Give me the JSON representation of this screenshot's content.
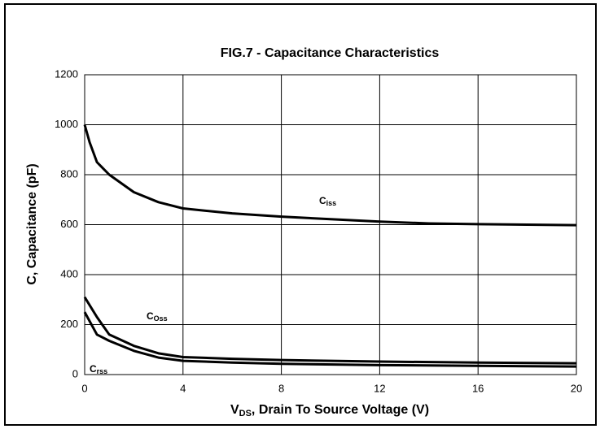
{
  "chart_data": {
    "type": "line",
    "title": "FIG.7 - Capacitance Characteristics",
    "xlabel": [
      "V",
      "DS",
      ", Drain To Source Voltage (V)"
    ],
    "ylabel": "C, Capacitance (pF)",
    "xlim": [
      0,
      20
    ],
    "xticks": [
      0,
      4,
      8,
      12,
      16,
      20
    ],
    "ylim": [
      0,
      1200
    ],
    "yticks": [
      0,
      200,
      400,
      600,
      800,
      1000,
      1200
    ],
    "grid": true,
    "series": [
      {
        "label": [
          "C",
          "iss"
        ],
        "color": "#000000",
        "x": [
          0,
          0.2,
          0.5,
          1,
          2,
          3,
          4,
          6,
          8,
          10,
          12,
          14,
          16,
          18,
          20
        ],
        "values": [
          1000,
          930,
          850,
          800,
          730,
          690,
          665,
          645,
          632,
          622,
          612,
          605,
          602,
          600,
          598
        ]
      },
      {
        "label": [
          "C",
          "Oss"
        ],
        "color": "#000000",
        "x": [
          0,
          0.5,
          1,
          2,
          3,
          4,
          6,
          8,
          12,
          16,
          20
        ],
        "values": [
          310,
          230,
          160,
          115,
          85,
          70,
          63,
          58,
          52,
          48,
          45
        ]
      },
      {
        "label": [
          "C",
          "rss"
        ],
        "color": "#000000",
        "x": [
          0,
          0.5,
          1,
          2,
          3,
          4,
          6,
          8,
          12,
          16,
          20
        ],
        "values": [
          250,
          160,
          135,
          95,
          68,
          55,
          48,
          43,
          38,
          35,
          32
        ]
      }
    ]
  }
}
